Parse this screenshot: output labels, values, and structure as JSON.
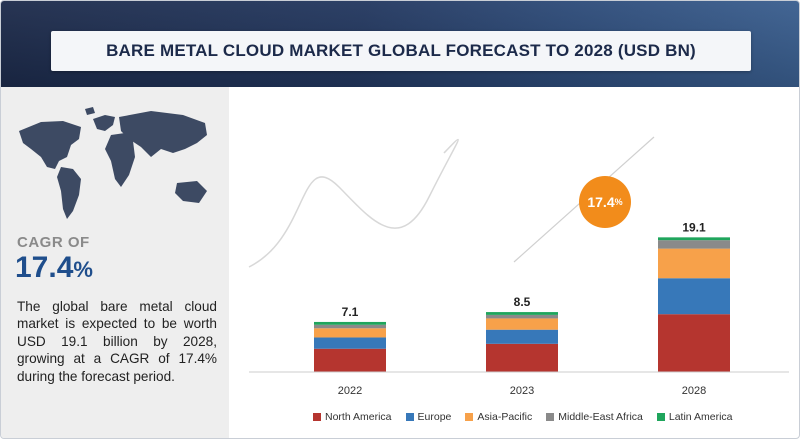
{
  "title": "BARE METAL CLOUD MARKET GLOBAL FORECAST TO 2028 (USD BN)",
  "cagr": {
    "label": "CAGR OF",
    "value": "17.4",
    "unit": "%"
  },
  "description": "The global bare metal cloud market is expected to be worth USD 19.1 billion by 2028, growing at a CAGR of 17.4% during the forecast period.",
  "growth_badge": {
    "value": "17.4",
    "unit": "%",
    "color": "#f28c1b"
  },
  "chart_data": {
    "type": "bar",
    "stacked": true,
    "categories": [
      "2022",
      "2023",
      "2028"
    ],
    "totals": [
      "7.1",
      "8.5",
      "19.1"
    ],
    "series": [
      {
        "name": "North America",
        "color": "#b5352f",
        "values": [
          3.3,
          4.0,
          8.2
        ]
      },
      {
        "name": "Europe",
        "color": "#3778b9",
        "values": [
          1.6,
          2.0,
          5.1
        ]
      },
      {
        "name": "Asia-Pacific",
        "color": "#f7a14a",
        "values": [
          1.3,
          1.6,
          4.2
        ]
      },
      {
        "name": "Middle-East Africa",
        "color": "#8a8a8a",
        "values": [
          0.5,
          0.5,
          1.2
        ]
      },
      {
        "name": "Latin America",
        "color": "#1fa55c",
        "values": [
          0.4,
          0.4,
          0.4
        ]
      }
    ],
    "legend": "bottom"
  }
}
